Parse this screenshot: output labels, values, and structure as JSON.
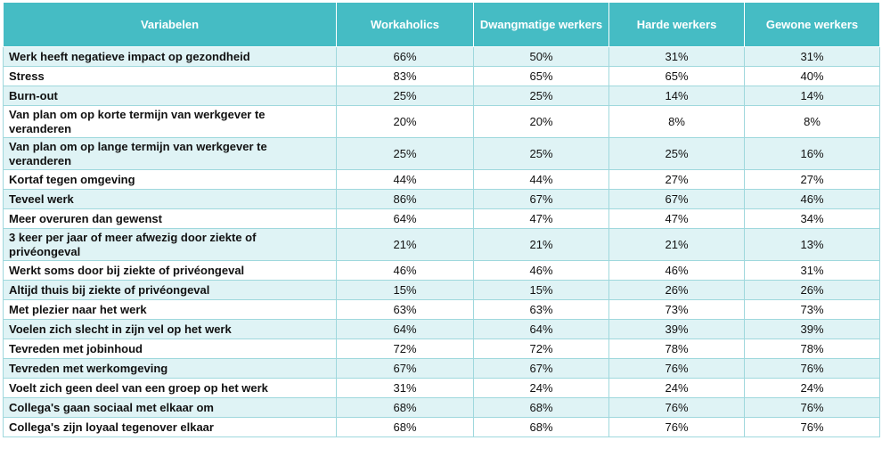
{
  "headers": [
    "Variabelen",
    "Workaholics",
    "Dwangmatige werkers",
    "Harde werkers",
    "Gewone werkers"
  ],
  "rows": [
    {
      "label": "Werk heeft negatieve impact op gezondheid",
      "values": [
        "66%",
        "50%",
        "31%",
        "31%"
      ]
    },
    {
      "label": "Stress",
      "values": [
        "83%",
        "65%",
        "65%",
        "40%"
      ]
    },
    {
      "label": "Burn-out",
      "values": [
        "25%",
        "25%",
        "14%",
        "14%"
      ]
    },
    {
      "label": "Van plan om op korte termijn van werkgever te veranderen",
      "values": [
        "20%",
        "20%",
        "8%",
        "8%"
      ]
    },
    {
      "label": "Van plan om op lange termijn van werkgever te veranderen",
      "values": [
        "25%",
        "25%",
        "25%",
        "16%"
      ]
    },
    {
      "label": "Kortaf tegen omgeving",
      "values": [
        "44%",
        "44%",
        "27%",
        "27%"
      ]
    },
    {
      "label": "Teveel werk",
      "values": [
        "86%",
        "67%",
        "67%",
        "46%"
      ]
    },
    {
      "label": "Meer overuren dan gewenst",
      "values": [
        "64%",
        "47%",
        "47%",
        "34%"
      ]
    },
    {
      "label": "3 keer per jaar of meer afwezig door ziekte of privéongeval",
      "values": [
        "21%",
        "21%",
        "21%",
        "13%"
      ]
    },
    {
      "label": "Werkt soms door bij ziekte of privéongeval",
      "values": [
        "46%",
        "46%",
        "46%",
        "31%"
      ]
    },
    {
      "label": "Altijd thuis bij ziekte of privéongeval",
      "values": [
        "15%",
        "15%",
        "26%",
        "26%"
      ]
    },
    {
      "label": "Met plezier naar het werk",
      "values": [
        "63%",
        "63%",
        "73%",
        "73%"
      ]
    },
    {
      "label": "Voelen zich slecht in zijn vel op het werk",
      "values": [
        "64%",
        "64%",
        "39%",
        "39%"
      ]
    },
    {
      "label": "Tevreden met jobinhoud",
      "values": [
        "72%",
        "72%",
        "78%",
        "78%"
      ]
    },
    {
      "label": "Tevreden met werkomgeving",
      "values": [
        "67%",
        "67%",
        "76%",
        "76%"
      ]
    },
    {
      "label": "Voelt zich geen deel van een groep op het werk",
      "values": [
        "31%",
        "24%",
        "24%",
        "24%"
      ]
    },
    {
      "label": "Collega's gaan sociaal met elkaar om",
      "values": [
        "68%",
        "68%",
        "76%",
        "76%"
      ]
    },
    {
      "label": "Collega's zijn loyaal tegenover elkaar",
      "values": [
        "68%",
        "68%",
        "76%",
        "76%"
      ]
    }
  ]
}
